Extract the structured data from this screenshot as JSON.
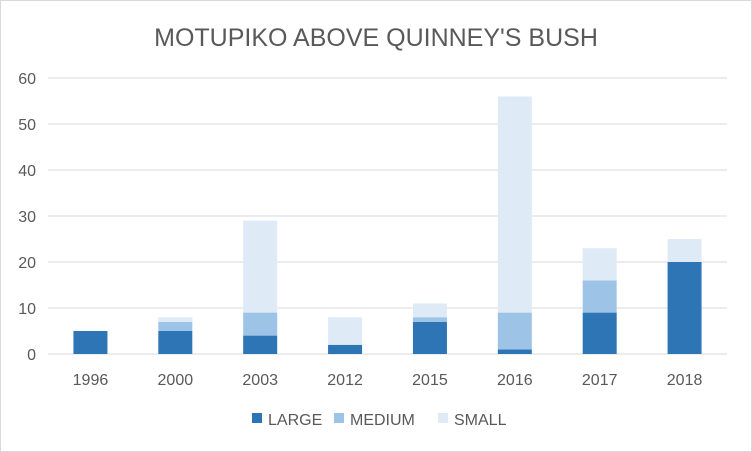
{
  "chart_data": {
    "type": "bar",
    "stacked": true,
    "title": "MOTUPIKO ABOVE QUINNEY'S BUSH",
    "xlabel": "",
    "ylabel": "",
    "ylim": [
      0,
      60
    ],
    "yticks": [
      0,
      10,
      20,
      30,
      40,
      50,
      60
    ],
    "grid": true,
    "legend_position": "bottom",
    "categories": [
      "1996",
      "2000",
      "2003",
      "2012",
      "2015",
      "2016",
      "2017",
      "2018"
    ],
    "series": [
      {
        "name": "LARGE",
        "color": "#2e75b6",
        "values": [
          5,
          5,
          4,
          2,
          7,
          1,
          9,
          20
        ]
      },
      {
        "name": "MEDIUM",
        "color": "#9dc3e6",
        "values": [
          0,
          2,
          5,
          0,
          1,
          8,
          7,
          0
        ]
      },
      {
        "name": "SMALL",
        "color": "#deebf7",
        "values": [
          0,
          1,
          20,
          6,
          3,
          47,
          7,
          5
        ]
      }
    ]
  }
}
